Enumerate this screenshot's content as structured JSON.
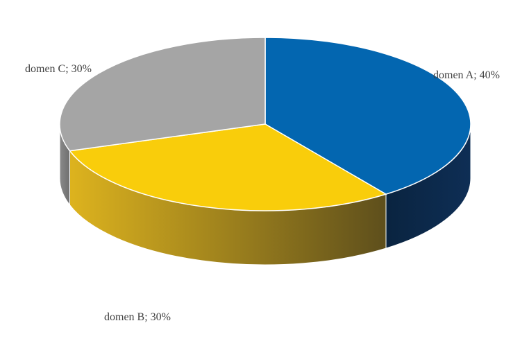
{
  "chart_data": {
    "type": "pie",
    "style": "3d",
    "categories": [
      "domen A",
      "domen B",
      "domen C"
    ],
    "values": [
      40,
      30,
      30
    ],
    "labels": [
      "domen A; 40%",
      "domen B; 30%",
      "domen C; 30%"
    ],
    "colors": [
      "#0366B0",
      "#F9CD0B",
      "#A5A5A5"
    ],
    "side_colors": [
      "#06294A",
      "#9C8328",
      "#7A7A7A"
    ],
    "title": "",
    "legend": "none"
  }
}
